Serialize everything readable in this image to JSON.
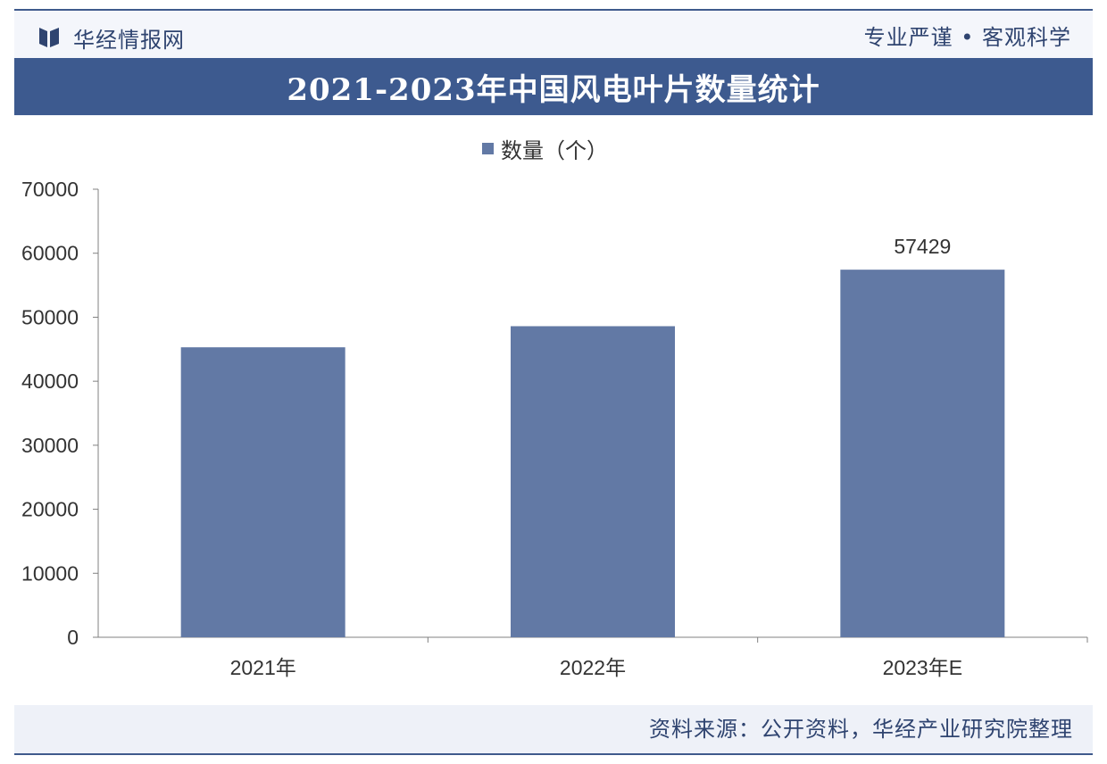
{
  "header": {
    "brand": "华经情报网",
    "slogan": "专业严谨 • 客观科学"
  },
  "colors": {
    "primary": "#3d5a8f",
    "bar": "#6279a5",
    "text": "#333333",
    "brand_text": "#2f4470"
  },
  "icons": {
    "brand_logo": "huajing-logo-icon"
  },
  "chart_data": {
    "type": "bar",
    "title": "2021-2023年中国风电叶片数量统计",
    "categories": [
      "2021年",
      "2022年",
      "2023年E"
    ],
    "series": [
      {
        "name": "数量（个）",
        "values": [
          45300,
          48600,
          57429
        ],
        "data_labels": [
          null,
          null,
          "57429"
        ]
      }
    ],
    "ylim": [
      0,
      70000
    ],
    "yticks": [
      0,
      10000,
      20000,
      30000,
      40000,
      50000,
      60000,
      70000
    ],
    "xlabel": "",
    "ylabel": "",
    "legend": "top-center",
    "grid": false
  },
  "footer": {
    "source": "资料来源：公开资料，华经产业研究院整理"
  }
}
